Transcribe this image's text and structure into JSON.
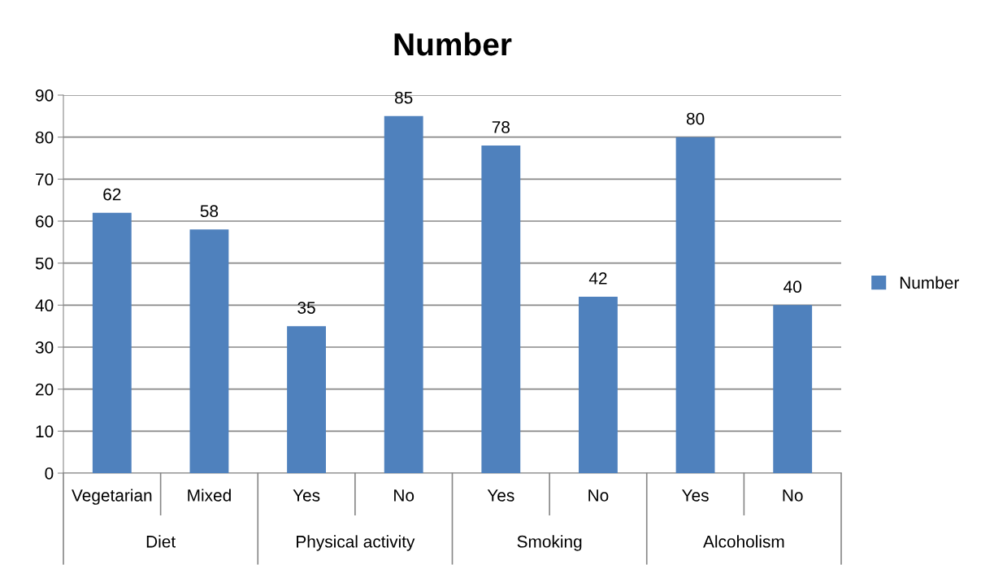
{
  "chart_data": {
    "type": "bar",
    "title": "Number",
    "categories": [
      "Vegetarian",
      "Mixed",
      "Yes",
      "No",
      "Yes",
      "No",
      "Yes",
      "No"
    ],
    "series": [
      {
        "name": "Number",
        "color": "#4f81bd",
        "values": [
          62,
          58,
          35,
          85,
          78,
          42,
          80,
          40
        ]
      }
    ],
    "annotations": [
      "Diet",
      "Physical activity",
      "Smoking",
      "Alcoholism"
    ],
    "ylim": [
      0,
      90
    ],
    "yticks": [
      0,
      10,
      20,
      30,
      40,
      50,
      60,
      70,
      80,
      90
    ],
    "grid": "y",
    "legend": "right",
    "data_labels": true
  }
}
